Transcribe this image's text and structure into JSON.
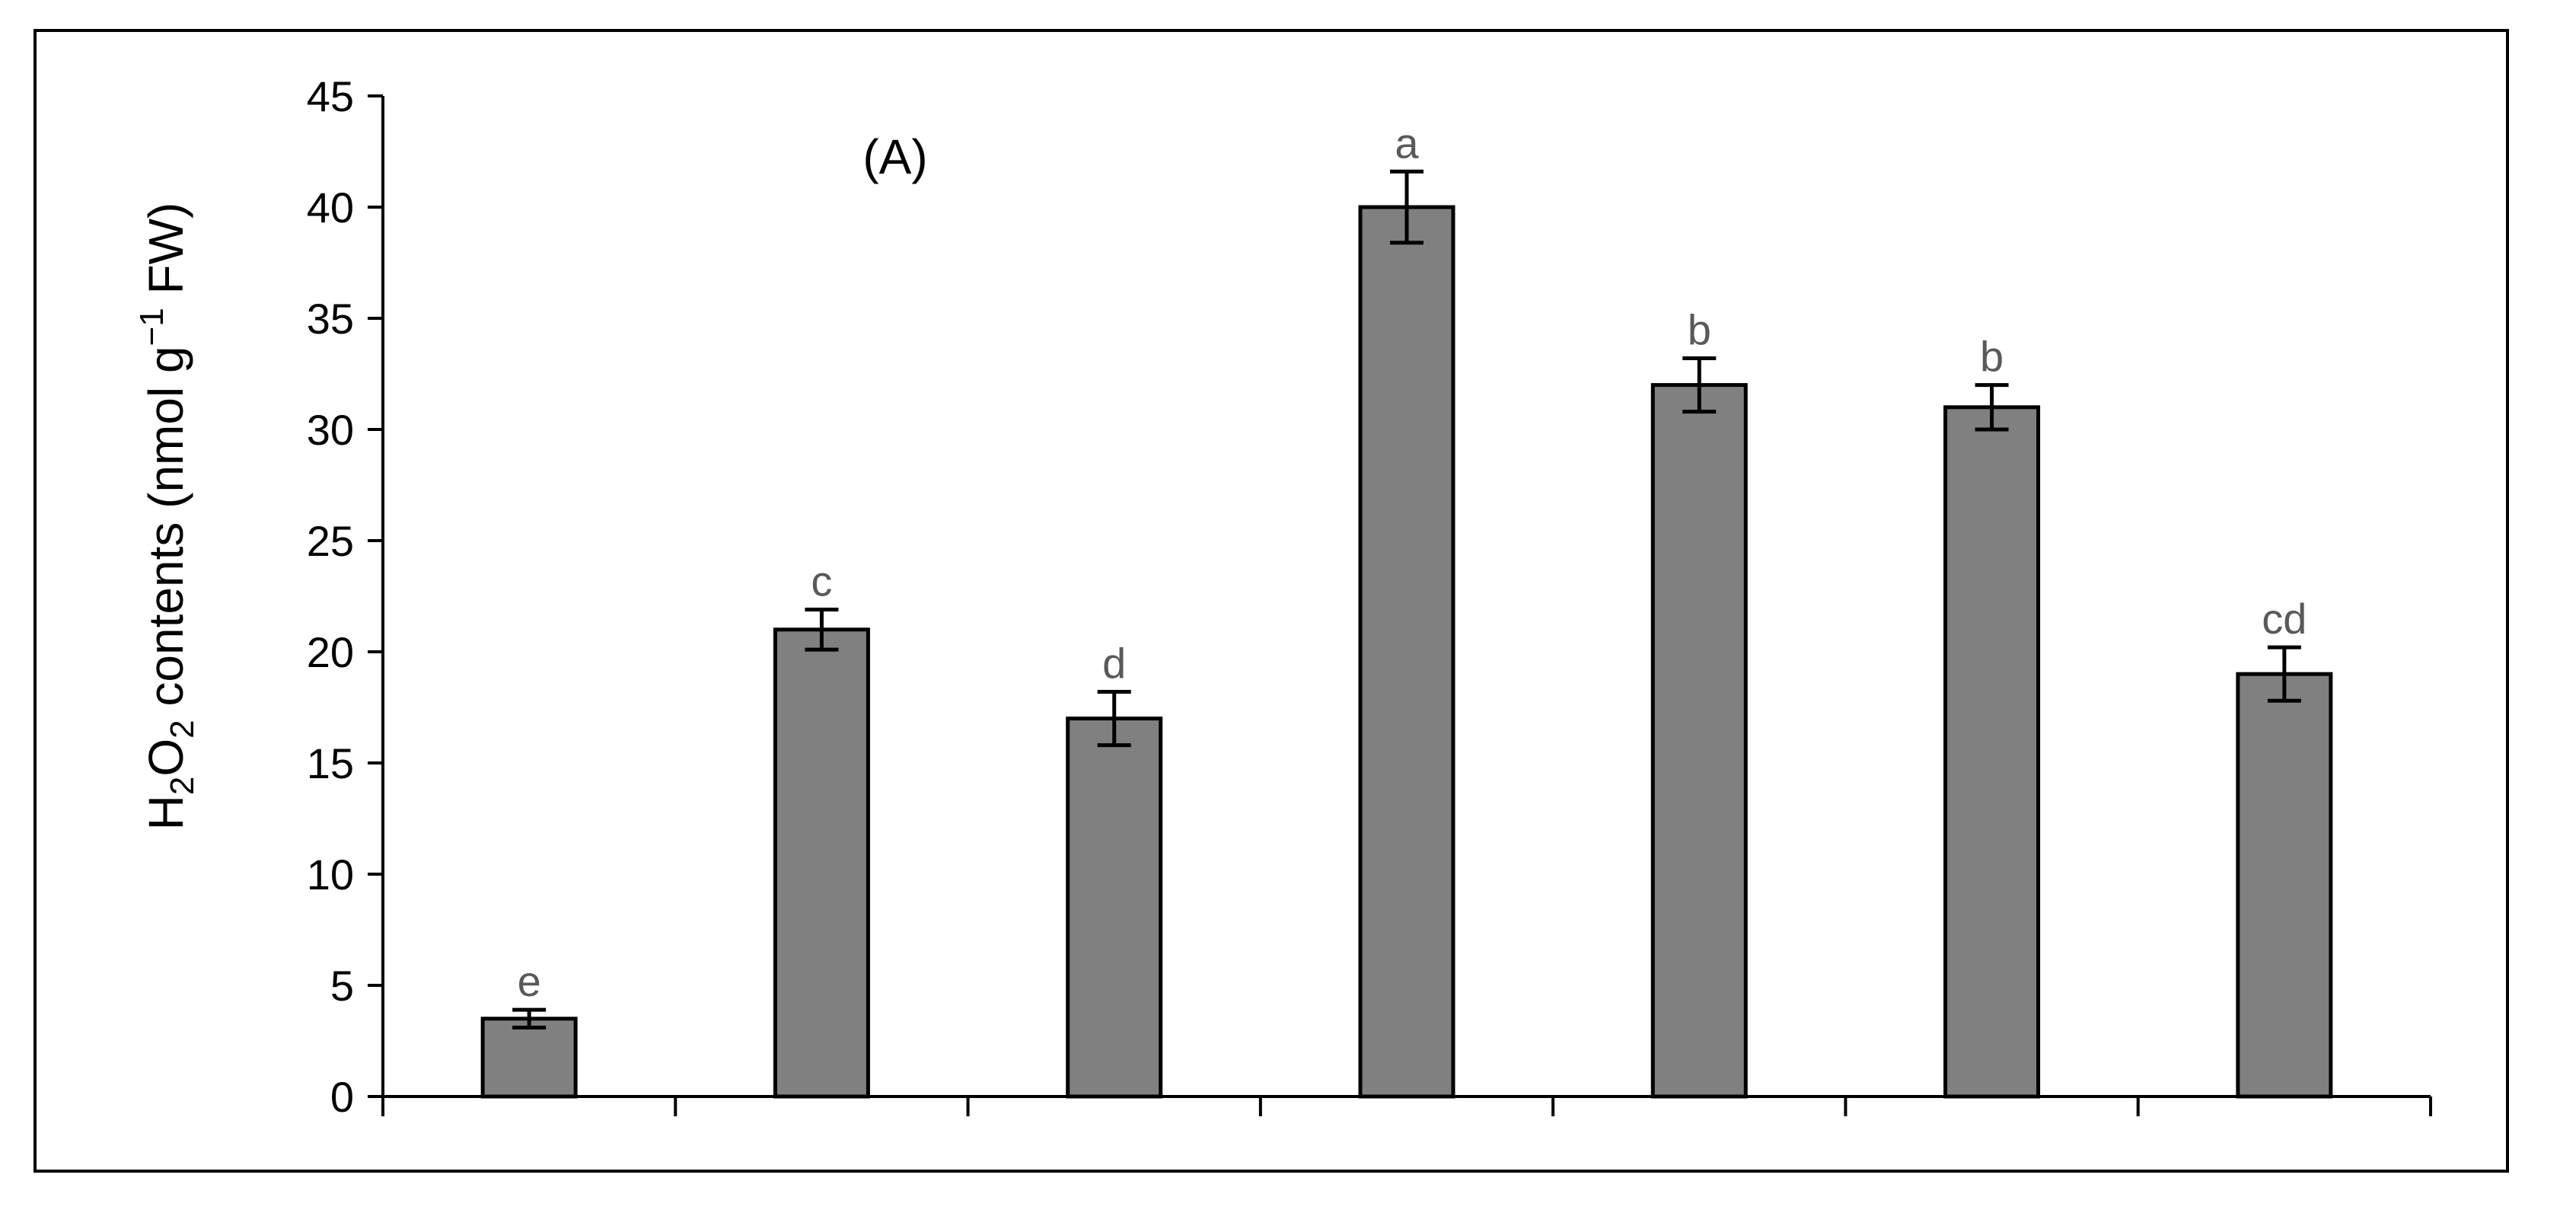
{
  "chart_data": {
    "type": "bar",
    "panel_label": "(A)",
    "categories": [
      "",
      "",
      "",
      "",
      "",
      "",
      ""
    ],
    "values": [
      3.5,
      21,
      17,
      40,
      32,
      31,
      19
    ],
    "errors": [
      0.4,
      0.9,
      1.2,
      1.6,
      1.2,
      1.0,
      1.2
    ],
    "significance": [
      "e",
      "c",
      "d",
      "a",
      "b",
      "b",
      "cd"
    ],
    "ylabel": {
      "prefix": "H",
      "sub1": "2",
      "mid": "O",
      "sub2": "2",
      "text": " contents (nmol g",
      "sup": "−1",
      "suffix": " FW)"
    },
    "ylim": [
      0,
      45
    ],
    "yticks": [
      "0",
      "5",
      "10",
      "15",
      "20",
      "25",
      "30",
      "35",
      "40",
      "45"
    ],
    "bar_color": "#808080",
    "grid": false
  }
}
